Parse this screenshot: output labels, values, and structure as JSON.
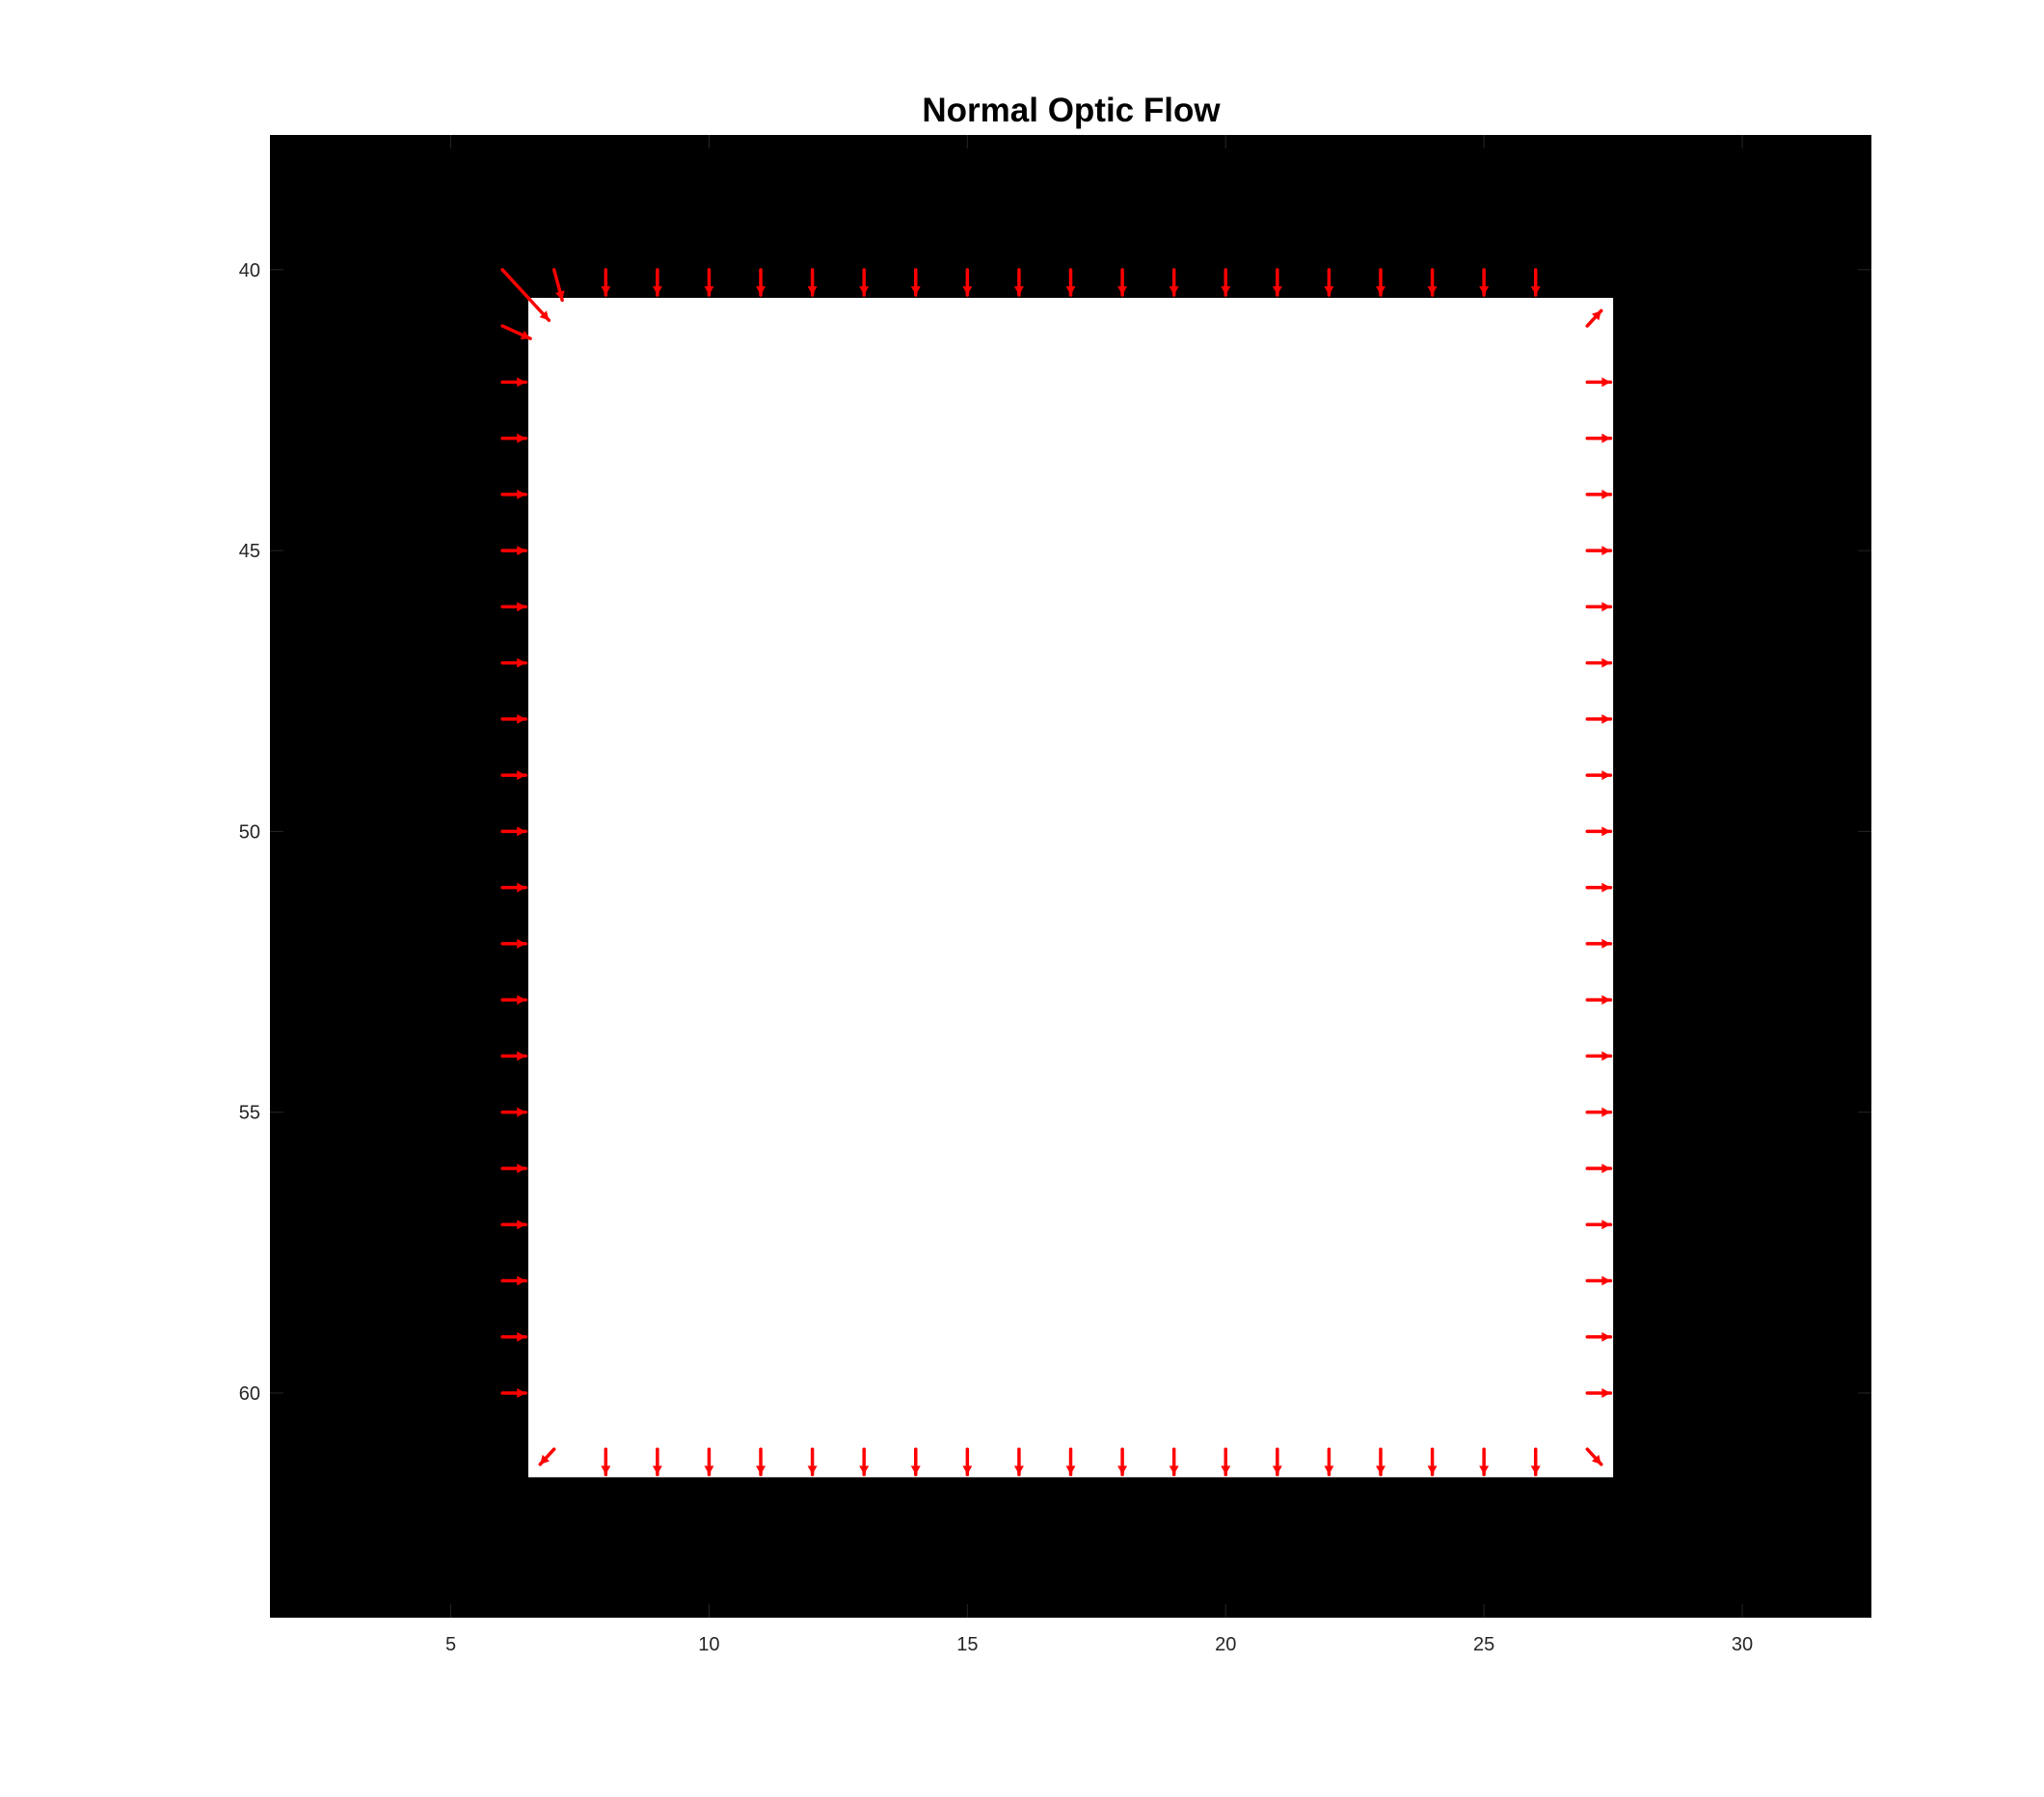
{
  "chart_data": {
    "type": "quiver",
    "title": "Normal Optic Flow",
    "xlabel": "",
    "ylabel": "",
    "xlim": [
      1.5,
      32.5
    ],
    "ylim": [
      37.6,
      64.0
    ],
    "y_reversed": true,
    "xticks": [
      5,
      10,
      15,
      20,
      25,
      30
    ],
    "yticks": [
      40,
      45,
      50,
      55,
      60
    ],
    "image": {
      "background": "#000000",
      "foreground": "#ffffff",
      "square": {
        "x_range": [
          6.5,
          27.5
        ],
        "y_range": [
          40.5,
          61.5
        ]
      }
    },
    "arrow_color": "#ff0000",
    "arrow_scale": 0.45,
    "arrows": {
      "top_edge": {
        "y": 40,
        "x": [
          8,
          9,
          10,
          11,
          12,
          13,
          14,
          15,
          16,
          17,
          18,
          19,
          20,
          21,
          22,
          23,
          24,
          25,
          26
        ],
        "u": 0,
        "v": 1
      },
      "bottom_edge": {
        "y": 61,
        "x": [
          8,
          9,
          10,
          11,
          12,
          13,
          14,
          15,
          16,
          17,
          18,
          19,
          20,
          21,
          22,
          23,
          24,
          25,
          26
        ],
        "u": 0,
        "v": 1
      },
      "left_edge": {
        "x": 6,
        "y": [
          42,
          43,
          44,
          45,
          46,
          47,
          48,
          49,
          50,
          51,
          52,
          53,
          54,
          55,
          56,
          57,
          58,
          59,
          60
        ],
        "u": 1,
        "v": 0
      },
      "right_edge": {
        "x": 27,
        "y": [
          42,
          43,
          44,
          45,
          46,
          47,
          48,
          49,
          50,
          51,
          52,
          53,
          54,
          55,
          56,
          57,
          58,
          59,
          60
        ],
        "u": 1,
        "v": 0
      },
      "corners": [
        {
          "x": 6,
          "y": 40,
          "u": 2.0,
          "v": 2.0
        },
        {
          "x": 7,
          "y": 40,
          "u": 0.35,
          "v": 1.2
        },
        {
          "x": 6,
          "y": 41,
          "u": 1.2,
          "v": 0.5
        },
        {
          "x": 27,
          "y": 41,
          "u": 0.6,
          "v": -0.6
        },
        {
          "x": 7,
          "y": 61,
          "u": -0.6,
          "v": 0.6
        },
        {
          "x": 27,
          "y": 61,
          "u": 0.6,
          "v": 0.6
        }
      ]
    }
  }
}
